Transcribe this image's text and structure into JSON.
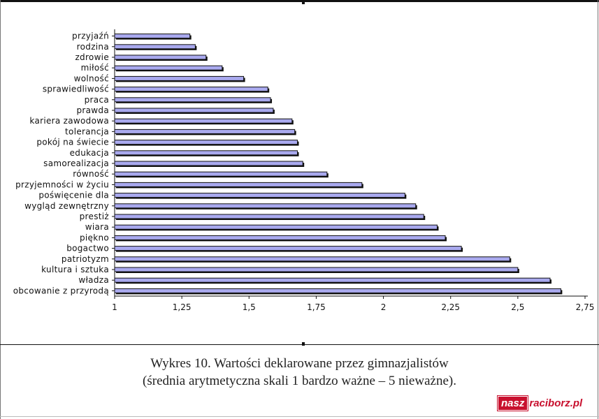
{
  "chart_data": {
    "type": "bar",
    "orientation": "horizontal",
    "categories": [
      "przyjaźń",
      "rodzina",
      "zdrowie",
      "miłość",
      "wolność",
      "sprawiedliwość",
      "praca",
      "prawda",
      "kariera zawodowa",
      "tolerancja",
      "pokój na świecie",
      "edukacja",
      "samorealizacja",
      "równość",
      "przyjemności w życiu",
      "poświęcenie dla",
      "wygląd zewnętrzny",
      "prestiż",
      "wiara",
      "piękno",
      "bogactwo",
      "patriotyzm",
      "kultura i sztuka",
      "władza",
      "obcowanie z przyrodą"
    ],
    "values": [
      1.28,
      1.3,
      1.34,
      1.4,
      1.48,
      1.57,
      1.58,
      1.59,
      1.66,
      1.67,
      1.68,
      1.68,
      1.7,
      1.79,
      1.92,
      2.08,
      2.12,
      2.15,
      2.2,
      2.23,
      2.29,
      2.47,
      2.5,
      2.62,
      2.66
    ],
    "xlim": [
      1,
      2.75
    ],
    "xticks": [
      "1",
      "1,25",
      "1,5",
      "1,75",
      "2",
      "2,25",
      "2,5",
      "2,75"
    ],
    "colors": {
      "bar_fill": "#a9a9ee",
      "bar_border": "#111111",
      "bar_shadow": "#111111"
    },
    "grid": false,
    "legend": "none"
  },
  "caption": {
    "line1": "Wykres 10. Wartości deklarowane przez gimnazjalistów",
    "line2": "(średnia arytmetyczna skali 1 bardzo ważne – 5 nieważne)."
  },
  "logo": {
    "part1": "nasz",
    "part2": "raciborz.pl",
    "color": "#c8102e"
  }
}
